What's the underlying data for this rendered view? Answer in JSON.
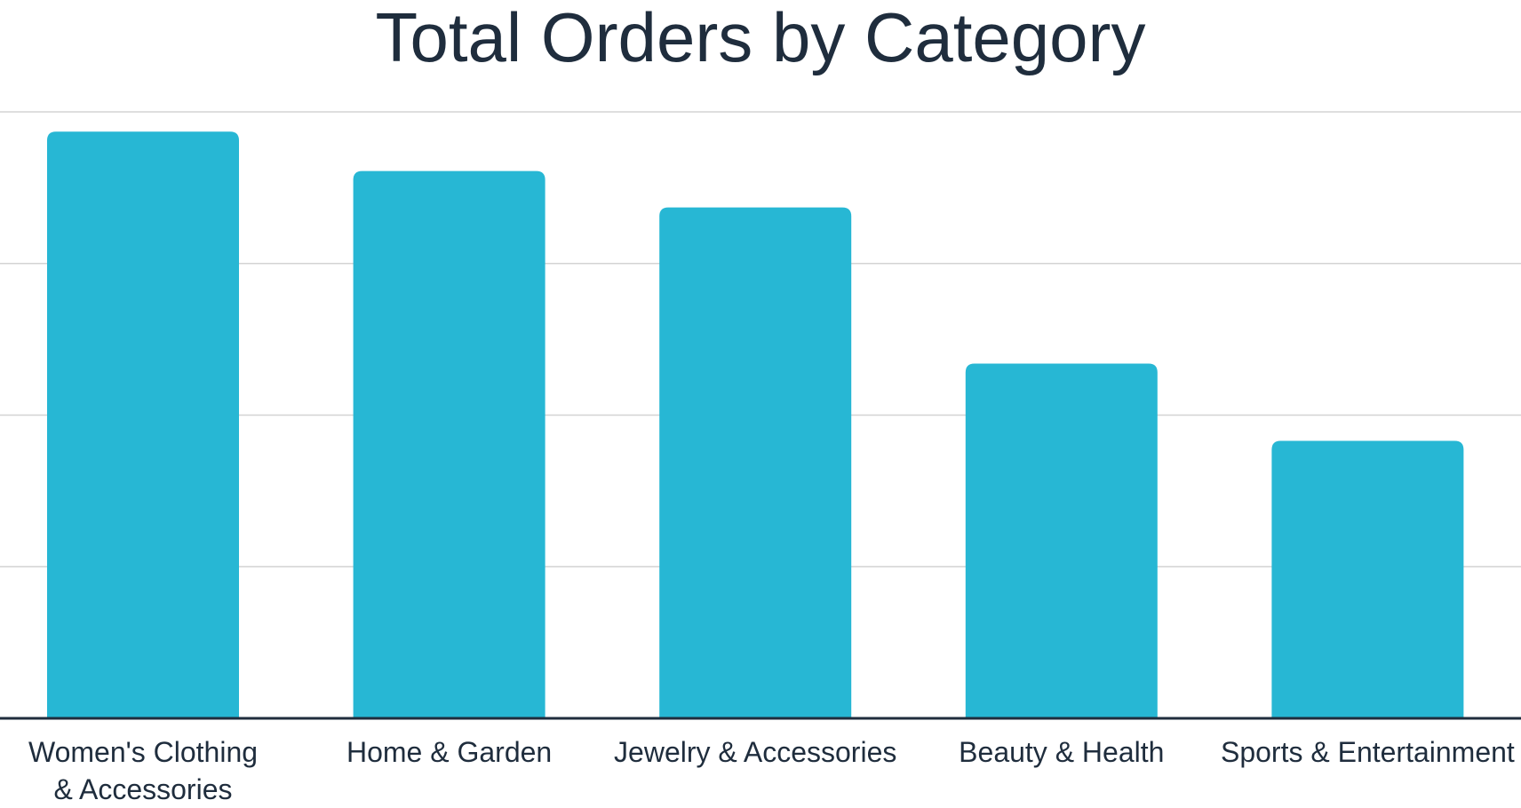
{
  "chart_data": {
    "type": "bar",
    "title": "Total Orders by Category",
    "xlabel": "",
    "ylabel": "",
    "categories": [
      [
        "Women's Clothing",
        "& Accessories"
      ],
      [
        "Home & Garden"
      ],
      [
        "Jewelry & Accessories"
      ],
      [
        "Beauty & Health"
      ],
      [
        "Sports & Entertainment"
      ]
    ],
    "values": [
      3.87,
      3.61,
      3.37,
      2.34,
      1.83
    ],
    "ylim": [
      0,
      4
    ],
    "grid": true,
    "legend": "none",
    "colors": {
      "bar": "#27b7d4",
      "grid": "#d3d3d3",
      "axis": "#1f2d3d",
      "text": "#1f2d3d"
    }
  }
}
